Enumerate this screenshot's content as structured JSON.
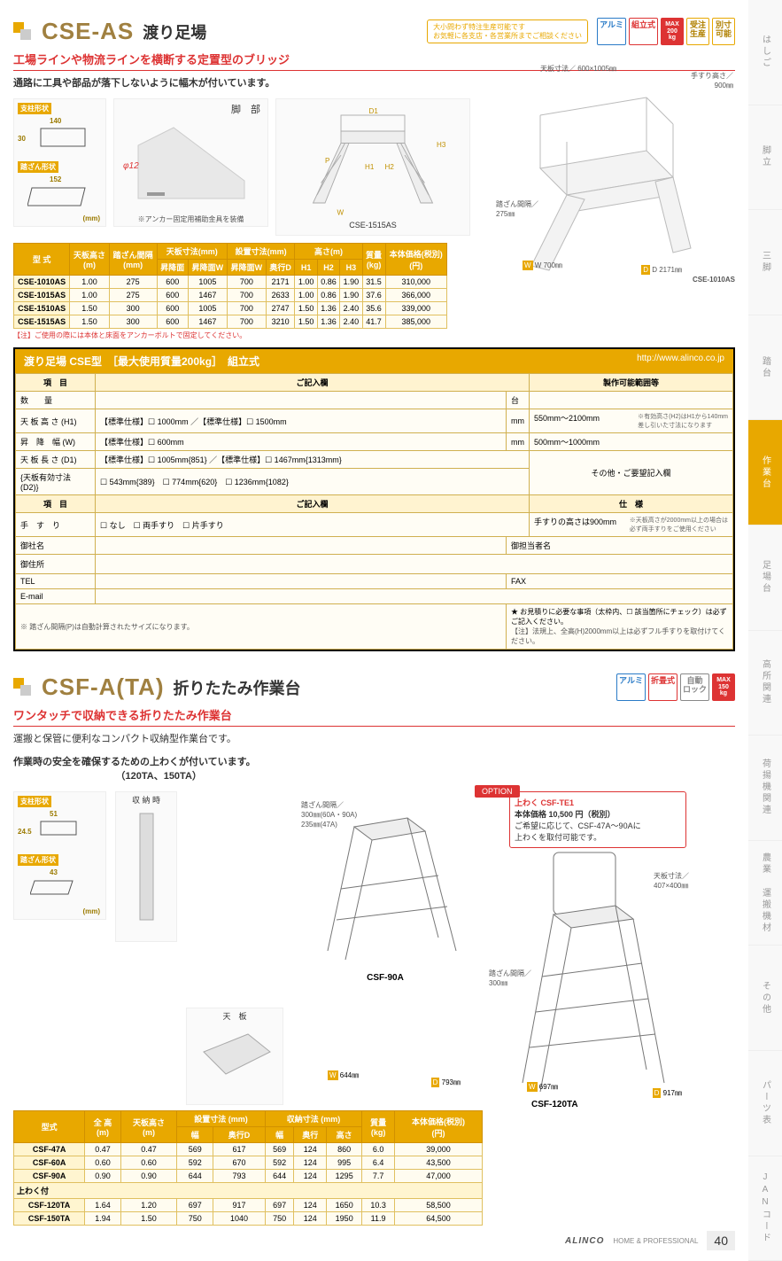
{
  "sidebar": [
    "はしご",
    "脚立",
    "三脚",
    "踏台",
    "作業台",
    "足場台",
    "高所関連",
    "荷揚機関連",
    "農業 運搬機材",
    "その他",
    "パーツ表",
    "JANコード"
  ],
  "active_tab": 4,
  "page_no": "40",
  "brand": "ALINCO",
  "brand_sub": "HOME & PROFESSIONAL",
  "cse": {
    "model": "CSE-AS",
    "jp": "渡り足場",
    "warn": "大小問わず特注生産可能です\nお気軽に各支店・各営業所までご相談ください",
    "badges": [
      {
        "cls": "b-alum",
        "txt": "アルミ"
      },
      {
        "cls": "b-red",
        "txt": "組立式"
      },
      {
        "cls": "b-max",
        "txt": "MAX\n200\nkg"
      },
      {
        "cls": "b-gold",
        "txt": "受注\n生産"
      },
      {
        "cls": "b-gold",
        "txt": "別寸\n可能"
      }
    ],
    "tagline": "工場ラインや物流ラインを横断する定置型のブリッジ",
    "sub": "通路に工具や部品が落下しないように幅木が付いています。",
    "spec_labels": {
      "shikei": "支柱形状",
      "w": "140",
      "h": "30",
      "fumi": "踏ざん形状",
      "fw": "152",
      "mm": "(mm)"
    },
    "leg": {
      "title": "脚　部",
      "phi": "φ12",
      "note": "※アンカー固定用補助金具を装備"
    },
    "bridge_label": "CSE-1515AS",
    "dims": [
      "D1",
      "P",
      "H1",
      "H2",
      "H3",
      "W"
    ],
    "iso": {
      "top": "天板寸法／ 600×1005㎜",
      "tesuri": "手すり高さ／\n900㎜",
      "fumi": "踏ざん間隔／\n275㎜",
      "w": "W 700㎜",
      "d": "D 2171㎜",
      "model": "CSE-1010AS"
    },
    "table": {
      "head1": [
        "型 式",
        "天板高さ\n(m)",
        "踏ざん間隔\n(mm)",
        "天板寸法(mm)",
        "設置寸法(mm)",
        "高さ(m)",
        "質量\n(kg)",
        "本体価格(税別)\n(円)"
      ],
      "head2": [
        "昇降面",
        "昇降面W",
        "奥行D",
        "H1",
        "H2",
        "H3"
      ],
      "rows": [
        [
          "CSE-1010AS",
          "1.00",
          "275",
          "600",
          "1005",
          "700",
          "2171",
          "1.00",
          "0.86",
          "1.90",
          "31.5",
          "310,000"
        ],
        [
          "CSE-1015AS",
          "1.00",
          "275",
          "600",
          "1467",
          "700",
          "2633",
          "1.00",
          "0.86",
          "1.90",
          "37.6",
          "366,000"
        ],
        [
          "CSE-1510AS",
          "1.50",
          "300",
          "600",
          "1005",
          "700",
          "2747",
          "1.50",
          "1.36",
          "2.40",
          "35.6",
          "339,000"
        ],
        [
          "CSE-1515AS",
          "1.50",
          "300",
          "600",
          "1467",
          "700",
          "3210",
          "1.50",
          "1.36",
          "2.40",
          "41.7",
          "385,000"
        ]
      ],
      "note": "【注】ご使用の際には本体と床面をアンカーボルトで固定してください。"
    },
    "form": {
      "title": "渡り足場 CSE型　［最大使用質量200kg］　組立式",
      "url": "http://www.alinco.co.jp",
      "h_item": "項　目",
      "h_entry": "ご記入欄",
      "h_range": "製作可能範囲等",
      "rows": [
        {
          "item": "数　　量",
          "entry": "",
          "unit": "台",
          "range": ""
        },
        {
          "item": "天 板 高 さ (H1)",
          "entry": "【標準仕様】☐ 1000mm ／【標準仕様】☐ 1500mm",
          "unit": "mm",
          "range": "550mm～2100mm",
          "note": "※有効高さ(H2)はH1から140mm\n差し引いた寸法になります"
        },
        {
          "item": "昇　降　幅 (W)",
          "entry": "【標準仕様】☐ 600mm",
          "unit": "mm",
          "range": "500mm～1000mm"
        },
        {
          "item": "天 板 長 さ (D1)",
          "entry": "【標準仕様】☐ 1005mm{851} ／【標準仕様】☐ 1467mm{1313mm}",
          "range_span": "その他・ご要望記入欄"
        },
        {
          "item": "{天板有効寸法 (D2)}",
          "entry": "☐ 543mm{389}　☐ 774mm{620}　☐ 1236mm{1082}"
        }
      ],
      "h_item2": "項　目",
      "h_entry2": "ご記入欄",
      "h_spec": "仕　様",
      "tesuri": {
        "item": "手　す　り",
        "entry": "☐ なし　☐ 両手すり　☐ 片手すり",
        "spec": "手すりの高さは900mm",
        "note": "※天板高さが2000mm以上の場合は\n必ず両手すりをご使用ください"
      },
      "contact": {
        "name": "御社名",
        "tantou": "御担当者名",
        "addr": "御住所",
        "tel": "TEL",
        "fax": "FAX",
        "email": "E-mail"
      },
      "bottom_note": "※ 踏ざん間隔(P)は自動計算されたサイズになります。",
      "star": "★ お見積りに必要な事項（太枠内、☐ 該当箇所にチェック）は必ずご記入ください。",
      "hosoku": "【注】法規上、全高(H)2000mm以上は必ずフル手すりを取付けてください。"
    }
  },
  "csf": {
    "model": "CSF-A(TA)",
    "jp": "折りたたみ作業台",
    "badges": [
      {
        "cls": "b-alum",
        "txt": "アルミ"
      },
      {
        "cls": "b-red",
        "txt": "折畳式"
      },
      {
        "cls": "b-grey",
        "txt": "自動\nロック"
      },
      {
        "cls": "b-max",
        "txt": "MAX\n150\nkg"
      }
    ],
    "tagline": "ワンタッチで収納できる折りたたみ作業台",
    "sub1": "運搬と保管に便利なコンパクト収納型作業台です。",
    "sub2": "作業時の安全を確保するための上わくが付いています。\n　　　　　　　　　　　（120TA、150TA）",
    "spec_labels": {
      "shikei": "支柱形状",
      "w": "51",
      "h": "24.5",
      "fumi": "踏ざん形状",
      "fw": "43",
      "mm": "(mm)"
    },
    "photo1_label": "収 納 時",
    "photo2_label": "天　板",
    "draw1": {
      "model": "CSF-90A",
      "fumi": "踏ざん間隔／\n300㎜(60A・90A)\n235㎜(47A)",
      "w": "W 644㎜",
      "d": "D 793㎜"
    },
    "option": {
      "title": "上わく CSF-TE1",
      "price": "本体価格 10,500 円（税別）",
      "body": "ご希望に応じて、CSF-47A～90Aに\n上わくを取付可能です。"
    },
    "draw2": {
      "model": "CSF-120TA",
      "tenban": "天板寸法／\n407×400㎜",
      "fumi": "踏ざん間隔／\n300㎜",
      "w": "W 697㎜",
      "d": "D 917㎜"
    },
    "table": {
      "head1": [
        "型式",
        "全 高\n(m)",
        "天板高さ\n(m)",
        "設置寸法 (mm)",
        "収納寸法 (mm)",
        "質量\n(kg)",
        "本体価格(税別)\n(円)"
      ],
      "head2": [
        "幅",
        "奥行D",
        "幅",
        "奥行",
        "高さ"
      ],
      "rows": [
        [
          "CSF-47A",
          "0.47",
          "0.47",
          "569",
          "617",
          "569",
          "124",
          "860",
          "6.0",
          "39,000"
        ],
        [
          "CSF-60A",
          "0.60",
          "0.60",
          "592",
          "670",
          "592",
          "124",
          "995",
          "6.4",
          "43,500"
        ],
        [
          "CSF-90A",
          "0.90",
          "0.90",
          "644",
          "793",
          "644",
          "124",
          "1295",
          "7.7",
          "47,000"
        ]
      ],
      "uwaku": "上わく付",
      "rows2": [
        [
          "CSF-120TA",
          "1.64",
          "1.20",
          "697",
          "917",
          "697",
          "124",
          "1650",
          "10.3",
          "58,500"
        ],
        [
          "CSF-150TA",
          "1.94",
          "1.50",
          "750",
          "1040",
          "750",
          "124",
          "1950",
          "11.9",
          "64,500"
        ]
      ]
    }
  }
}
